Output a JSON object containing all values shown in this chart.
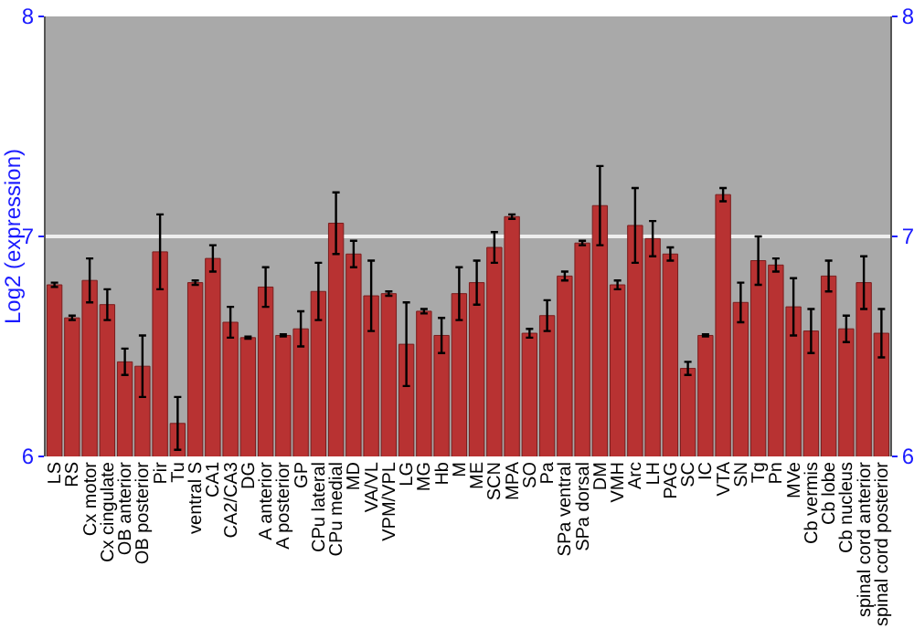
{
  "chart_data": {
    "type": "bar",
    "ylabel": "Log2 (expression)",
    "categories": [
      "LS",
      "RS",
      "Cx motor",
      "Cx cingulate",
      "OB anterior",
      "OB posterior",
      "Pir",
      "Tu",
      "ventral S",
      "CA1",
      "CA2/CA3",
      "DG",
      "A anterior",
      "A posterior",
      "GP",
      "CPu lateral",
      "CPu medial",
      "MD",
      "VA/VL",
      "VPM/VPL",
      "LG",
      "MG",
      "Hb",
      "M",
      "ME",
      "SCN",
      "MPA",
      "SO",
      "Pa",
      "SPa ventral",
      "SPa dorsal",
      "DM",
      "VMH",
      "Arc",
      "LH",
      "PAG",
      "SC",
      "IC",
      "VTA",
      "SN",
      "Tg",
      "Pn",
      "MVe",
      "Cb vermis",
      "Cb lobe",
      "Cb nucleus",
      "spinal cord anterior",
      "spinal cord posterior"
    ],
    "values": [
      6.78,
      6.63,
      6.8,
      6.69,
      6.43,
      6.41,
      6.93,
      6.15,
      6.79,
      6.9,
      6.61,
      6.54,
      6.77,
      6.55,
      6.58,
      6.75,
      7.06,
      6.92,
      6.73,
      6.74,
      6.51,
      6.66,
      6.55,
      6.74,
      6.79,
      6.95,
      7.09,
      6.56,
      6.64,
      6.82,
      6.97,
      7.14,
      6.78,
      7.05,
      6.99,
      6.92,
      6.4,
      6.55,
      7.19,
      6.7,
      6.89,
      6.87,
      6.68,
      6.57,
      6.82,
      6.58,
      6.79,
      6.56
    ],
    "errors": [
      0.01,
      0.01,
      0.1,
      0.07,
      0.06,
      0.14,
      0.17,
      0.12,
      0.01,
      0.06,
      0.07,
      0.005,
      0.09,
      0.005,
      0.08,
      0.13,
      0.14,
      0.06,
      0.16,
      0.01,
      0.19,
      0.01,
      0.08,
      0.12,
      0.1,
      0.07,
      0.01,
      0.02,
      0.07,
      0.02,
      0.01,
      0.18,
      0.02,
      0.17,
      0.08,
      0.03,
      0.03,
      0.005,
      0.03,
      0.09,
      0.11,
      0.03,
      0.13,
      0.1,
      0.07,
      0.06,
      0.12,
      0.11
    ],
    "color": "#b83232",
    "ylim": [
      6,
      8
    ],
    "yticks": [
      6,
      7,
      8
    ],
    "y2lim": [
      6,
      8
    ],
    "y2ticks": [
      6,
      7,
      8
    ],
    "grid": "y"
  }
}
